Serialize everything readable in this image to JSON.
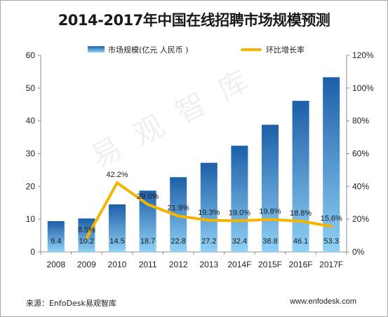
{
  "title": "2014-2017年中国在线招聘市场规模预测",
  "source": "来源：EnfoDesk易观智库",
  "website": "www.enfodesk.com",
  "watermark": "易观智库",
  "colors": {
    "bar_top": "#1d5fa8",
    "bar_bottom": "#8fd0f5",
    "line": "#f5b400"
  },
  "chart_data": {
    "type": "bar+line",
    "title": "2014-2017年中国在线招聘市场规模预测",
    "categories": [
      "2008",
      "2009",
      "2010",
      "2011",
      "2012",
      "2013",
      "2014F",
      "2015F",
      "2016F",
      "2017F"
    ],
    "series": [
      {
        "name": "市场规模(亿元 人民币 )",
        "type": "bar",
        "axis": "left",
        "values": [
          9.4,
          10.2,
          14.5,
          18.7,
          22.8,
          27.2,
          32.4,
          38.8,
          46.1,
          53.3
        ],
        "labels": [
          "9.4",
          "10.2",
          "14.5",
          "18.7",
          "22.8",
          "27.2",
          "32.4",
          "38.8",
          "46.1",
          "53.3"
        ]
      },
      {
        "name": "环比增长率",
        "type": "line",
        "axis": "right",
        "values": [
          null,
          8.5,
          42.2,
          29.0,
          21.9,
          19.3,
          19.0,
          19.8,
          18.8,
          15.6
        ],
        "labels": [
          null,
          "8.5%",
          "42.2%",
          "29.0%",
          "21.9%",
          "19.3%",
          "19.0%",
          "19.8%",
          "18.8%",
          "15.6%"
        ]
      }
    ],
    "y_left": {
      "range": [
        0,
        60
      ],
      "ticks": [
        "0",
        "10",
        "20",
        "30",
        "40",
        "50",
        "60"
      ]
    },
    "y_right": {
      "range": [
        0,
        120
      ],
      "ticks": [
        "0%",
        "20%",
        "40%",
        "60%",
        "80%",
        "100%",
        "120%"
      ]
    },
    "grid": false,
    "legend_position": "top"
  }
}
